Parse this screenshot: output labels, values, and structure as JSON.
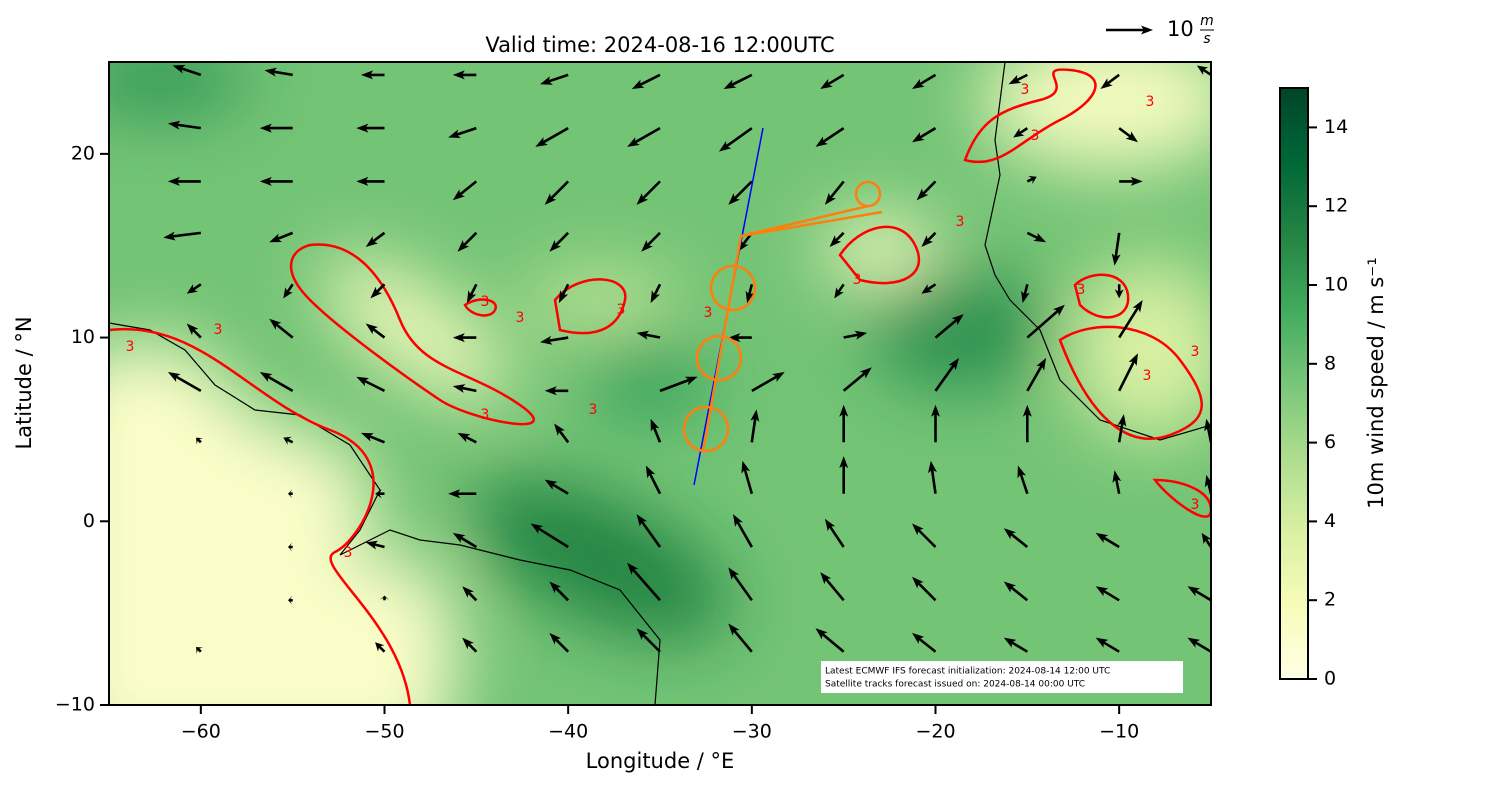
{
  "chart_data": {
    "type": "quiver",
    "title": "Valid time: 2024-08-16 12:00UTC",
    "x_label": "Longitude / °E",
    "y_label": "Latitude / °N",
    "xlim": [
      -65,
      -5
    ],
    "ylim": [
      -10,
      25
    ],
    "xticks": [
      {
        "value": -60,
        "label": "−60"
      },
      {
        "value": -50,
        "label": "−50"
      },
      {
        "value": -40,
        "label": "−40"
      },
      {
        "value": -30,
        "label": "−30"
      },
      {
        "value": -20,
        "label": "−20"
      },
      {
        "value": -10,
        "label": "−10"
      }
    ],
    "yticks": [
      {
        "value": -10,
        "label": "−10"
      },
      0,
      10,
      20
    ],
    "colorbar": {
      "label": "10m wind speed / m s⁻¹",
      "lim": [
        0,
        15
      ],
      "ticks": [
        0,
        2,
        4,
        6,
        8,
        10,
        12,
        14
      ],
      "colormap": "YlGn"
    },
    "contour": {
      "level": 3,
      "color": "#ff0000"
    },
    "quiver_key": {
      "value": 10,
      "label": "10",
      "unit_top": "m",
      "unit_bottom": "s"
    },
    "annotations": [
      "Latest ECMWF IFS forecast initialization: 2024-08-14 12:00 UTC",
      "Satellite tracks forecast issued on: 2024-08-14 00:00 UTC"
    ],
    "lons": [
      -60,
      -55,
      -50,
      -45,
      -40,
      -35,
      -30,
      -25,
      -20,
      -15,
      -10,
      -5
    ],
    "lats": [
      24.3,
      21.4,
      18.5,
      15.7,
      12.9,
      10,
      7.1,
      4.3,
      1.5,
      -1.4,
      -4.3,
      -7.1
    ],
    "u": [
      [
        -6,
        -6,
        -5,
        -5,
        -6,
        -6,
        -6,
        -5,
        -5,
        -4,
        -4,
        -3
      ],
      [
        -7,
        -7,
        -6,
        -6,
        -7,
        -7,
        -7,
        -6,
        -5,
        -3,
        4,
        5
      ],
      [
        -7,
        -7,
        -6,
        -5,
        -5,
        -5,
        -5,
        -4,
        -4,
        2,
        5,
        6
      ],
      [
        -8,
        -5,
        -4,
        -4,
        -4,
        -4,
        -3,
        -3,
        -3,
        4,
        -1,
        5
      ],
      [
        -3,
        -2,
        -3,
        -2,
        -2,
        -2,
        -1,
        -2,
        -3,
        -1,
        0,
        5
      ],
      [
        -3,
        -5,
        -4,
        -5,
        -6,
        -5,
        -5,
        5,
        6,
        8,
        5,
        5
      ],
      [
        -7,
        -7,
        -6,
        -5,
        -5,
        8,
        7,
        6,
        5,
        4,
        4,
        3
      ],
      [
        -1,
        -2,
        -5,
        -4,
        -3,
        -2,
        1,
        0,
        0,
        0,
        1,
        -1
      ],
      [
        0,
        -1,
        -2,
        -6,
        -5,
        -3,
        -2,
        0,
        -1,
        -2,
        -1,
        -1
      ],
      [
        0,
        -1,
        -4,
        -5,
        -8,
        -5,
        -4,
        -4,
        -5,
        -5,
        -5,
        -2
      ],
      [
        0,
        -1,
        0,
        -3,
        -4,
        -7,
        -5,
        -5,
        -5,
        -5,
        -5,
        -5
      ],
      [
        -1,
        0,
        -2,
        -3,
        -4,
        -5,
        -5,
        -6,
        -5,
        -5,
        -5,
        -5
      ]
    ],
    "v": [
      [
        2,
        1,
        0,
        0,
        -2,
        -3,
        -3,
        -3,
        -3,
        -2,
        -3,
        2
      ],
      [
        1,
        0,
        0,
        -2,
        -4,
        -4,
        -5,
        -4,
        -3,
        -2,
        -3,
        0
      ],
      [
        0,
        0,
        0,
        -4,
        -5,
        -5,
        -5,
        -5,
        -4,
        1,
        0,
        -1
      ],
      [
        -1,
        -2,
        -3,
        -4,
        -4,
        -4,
        -4,
        -3,
        -3,
        -2,
        -7,
        2
      ],
      [
        -2,
        -3,
        -3,
        -4,
        -4,
        -4,
        -4,
        -3,
        -2,
        -4,
        -3,
        0
      ],
      [
        3,
        4,
        3,
        0,
        -1,
        1,
        0,
        1,
        5,
        7,
        8,
        6
      ],
      [
        4,
        4,
        3,
        1,
        0,
        3,
        4,
        5,
        7,
        7,
        8,
        0
      ],
      [
        1,
        1,
        2,
        2,
        4,
        5,
        7,
        8,
        8,
        8,
        6,
        5
      ],
      [
        0,
        0,
        0,
        0,
        3,
        6,
        7,
        8,
        7,
        6,
        5,
        4
      ],
      [
        0,
        0,
        1,
        3,
        5,
        7,
        7,
        6,
        5,
        4,
        3,
        3
      ],
      [
        0,
        0,
        1,
        3,
        4,
        8,
        7,
        6,
        5,
        4,
        3,
        3
      ],
      [
        1,
        0,
        2,
        3,
        4,
        5,
        6,
        5,
        4,
        3,
        3,
        3
      ]
    ]
  }
}
